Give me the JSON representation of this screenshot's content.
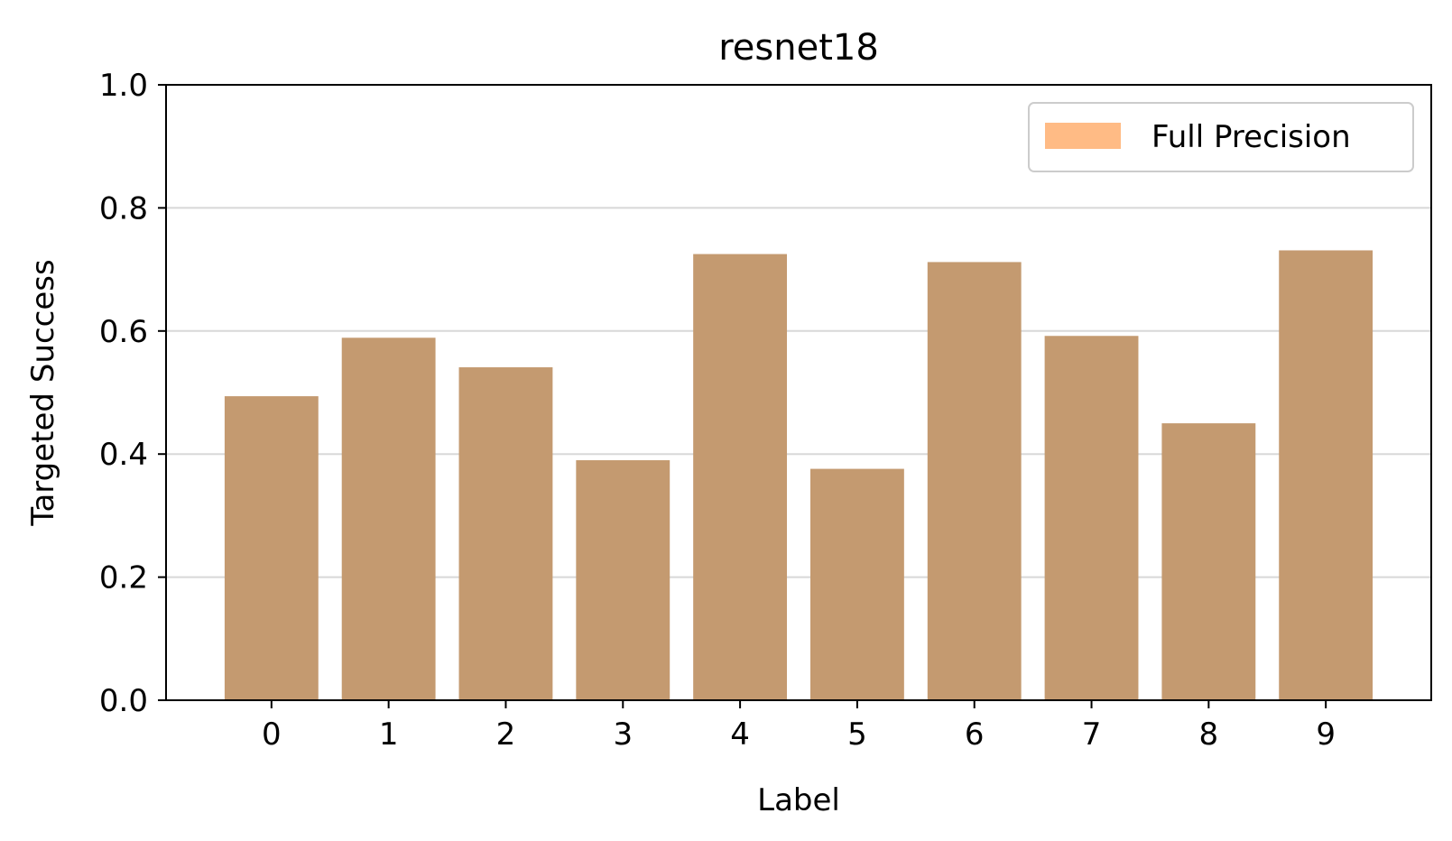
{
  "chart_data": {
    "type": "bar",
    "title": "resnet18",
    "xlabel": "Label",
    "ylabel": "Targeted Success",
    "categories": [
      "0",
      "1",
      "2",
      "3",
      "4",
      "5",
      "6",
      "7",
      "8",
      "9"
    ],
    "series": [
      {
        "name": "Full Precision",
        "values": [
          0.494,
          0.589,
          0.541,
          0.39,
          0.725,
          0.376,
          0.712,
          0.592,
          0.45,
          0.731
        ]
      }
    ],
    "ylim": [
      0,
      1.0
    ],
    "yticks": [
      "0.0",
      "0.2",
      "0.4",
      "0.6",
      "0.8",
      "1.0"
    ],
    "grid": "horizontal",
    "legend_position": "top-right",
    "colors": {
      "bar": "#c49a70",
      "legend_patch": "#ffbb85",
      "grid": "#d8d8d8"
    }
  }
}
